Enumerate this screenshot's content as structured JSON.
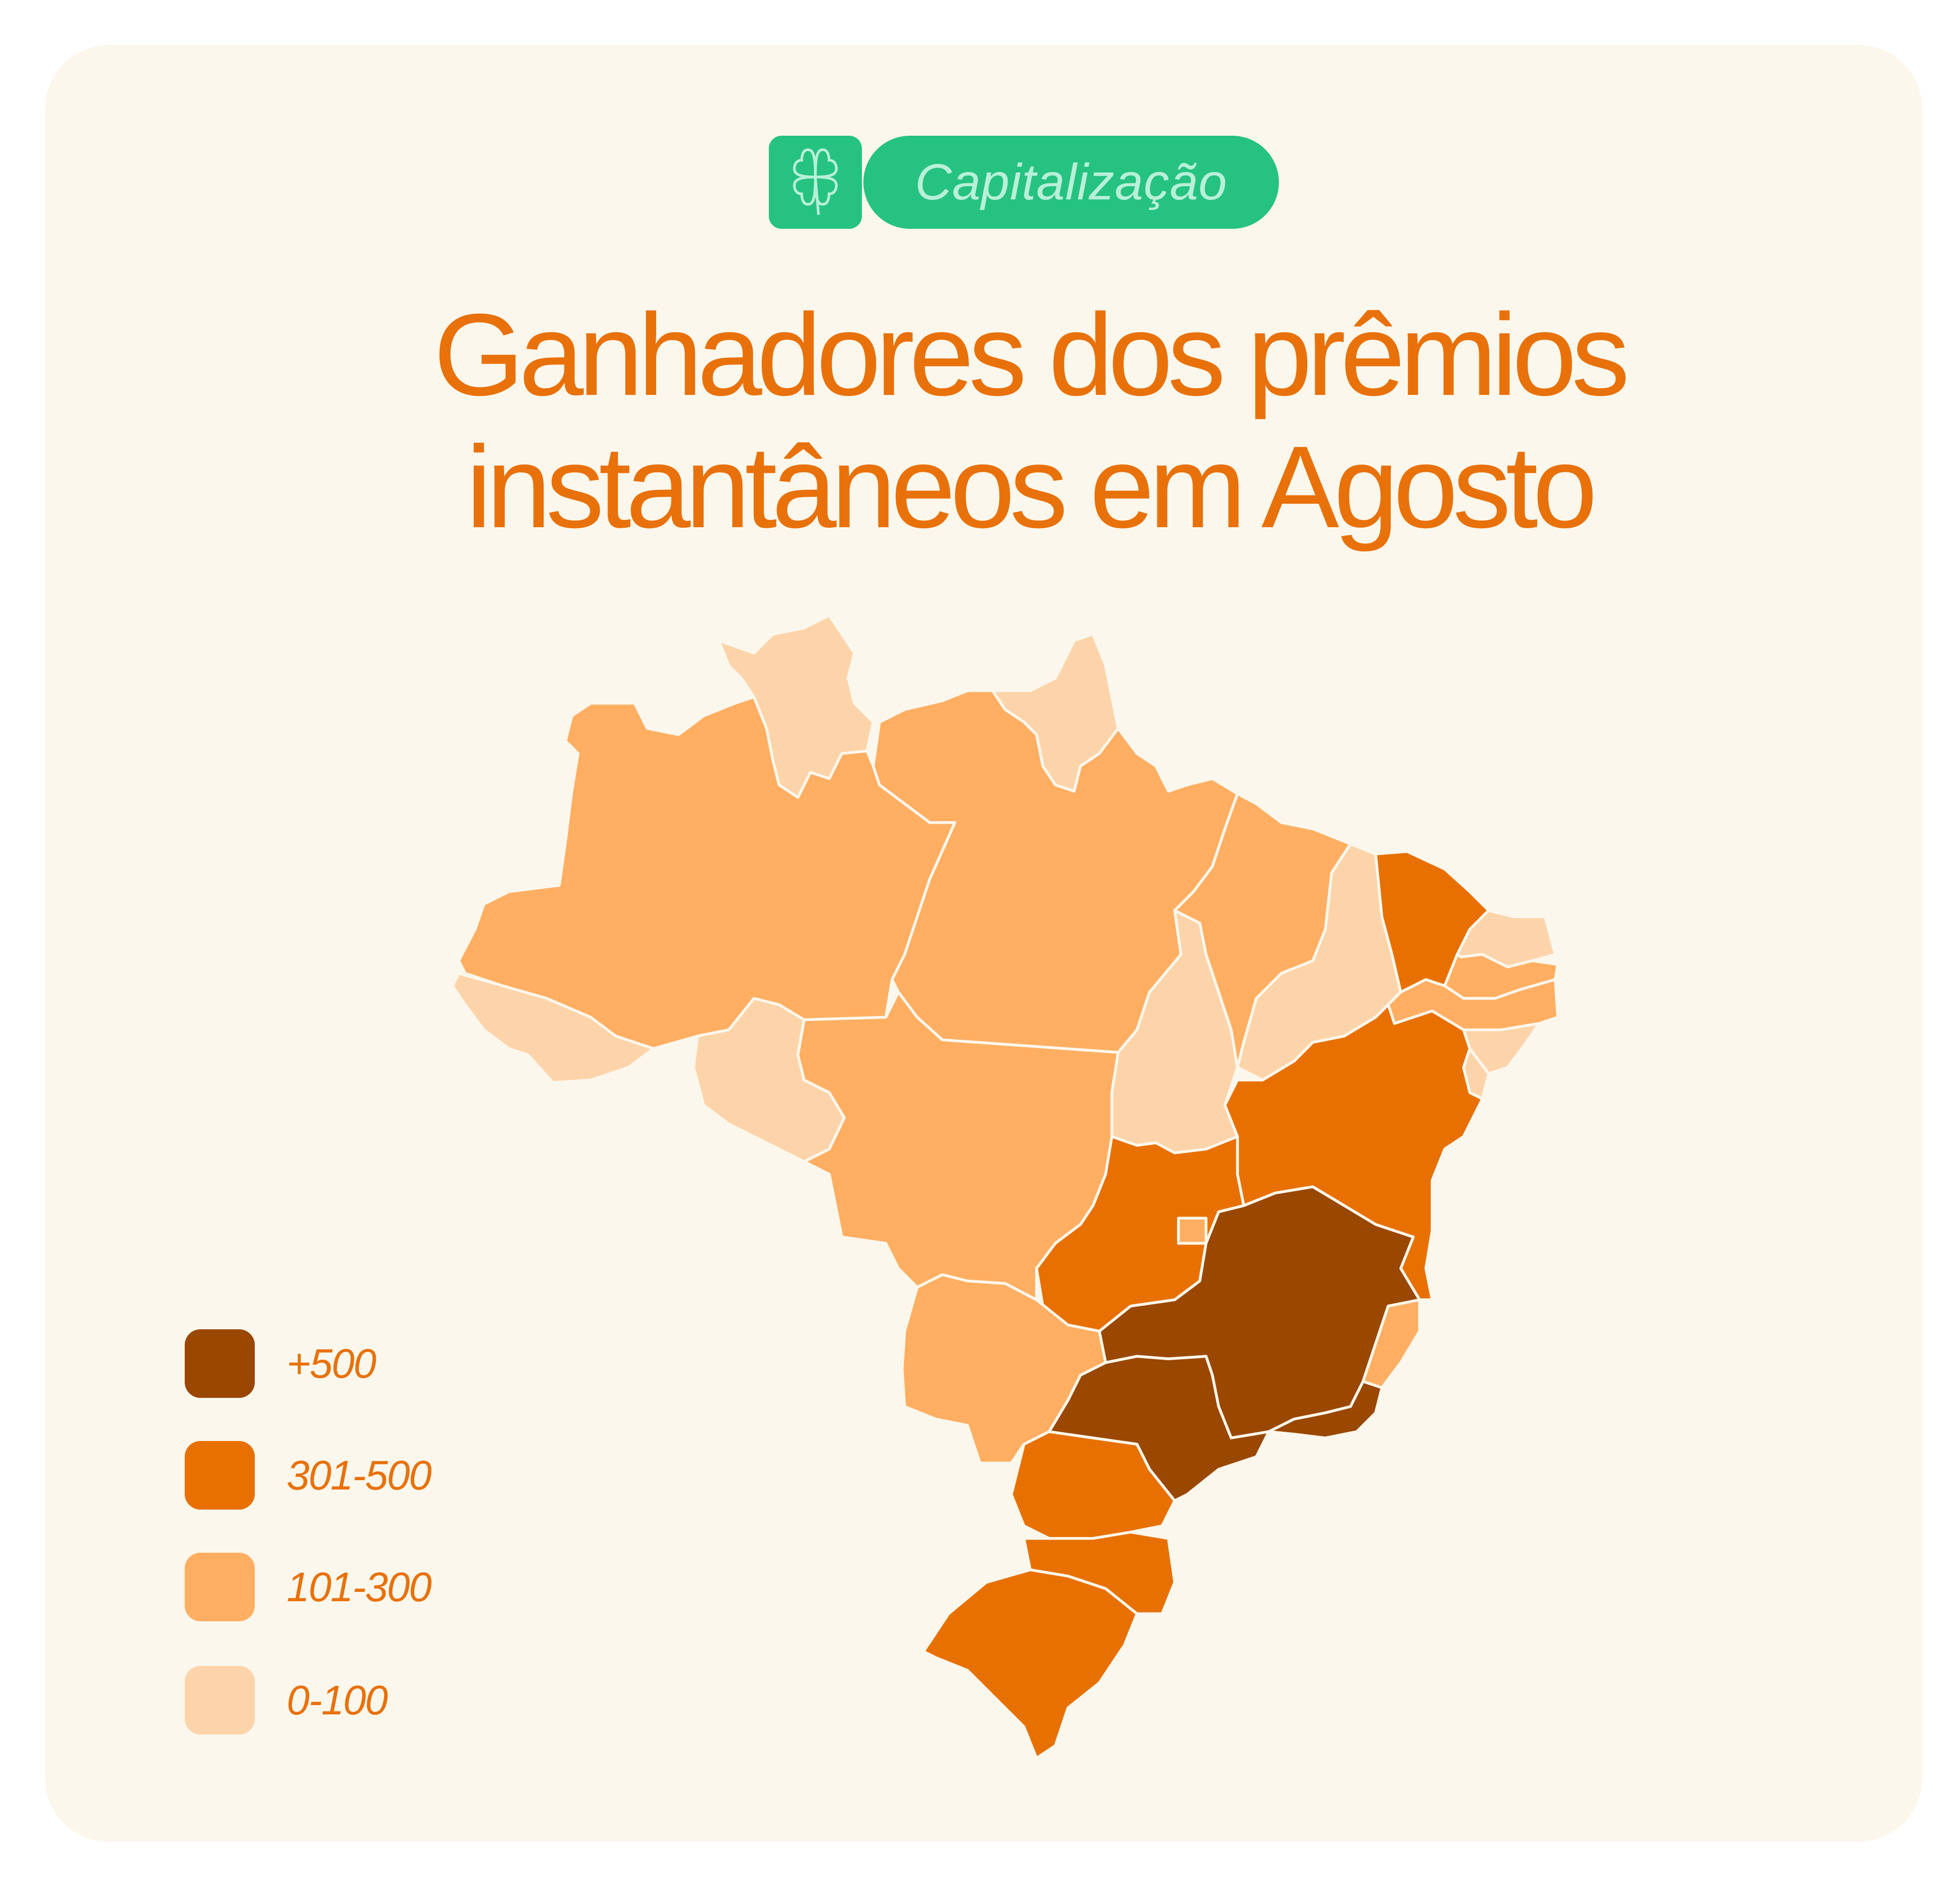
{
  "badge": {
    "label": "Capitalização",
    "icon": "four-leaf-clover-icon",
    "color": "#26c281",
    "text_color": "#b8f0d8"
  },
  "title": {
    "line1": "Ganhadores dos prêmios",
    "line2": "instantâneos em Agosto"
  },
  "legend": [
    {
      "label": "+500",
      "color": "#9a4700"
    },
    {
      "label": "301-500",
      "color": "#e87000"
    },
    {
      "label": "101-300",
      "color": "#ffae62"
    },
    {
      "label": "0-100",
      "color": "#fdd4aa"
    }
  ],
  "map_data": {
    "RR": "0-100",
    "AP": "0-100",
    "AC": "0-100",
    "RO": "0-100",
    "TO": "0-100",
    "PI": "0-100",
    "RN": "0-100",
    "AL": "0-100",
    "SE": "0-100",
    "AM": "101-300",
    "PA": "101-300",
    "MT": "101-300",
    "MS": "101-300",
    "MA": "101-300",
    "PB": "101-300",
    "PE": "101-300",
    "ES": "101-300",
    "DF": "101-300",
    "CE": "301-500",
    "BA": "301-500",
    "GO": "301-500",
    "PR": "301-500",
    "SC": "301-500",
    "RS": "301-500",
    "MG": "+500",
    "SP": "+500",
    "RJ": "+500"
  }
}
